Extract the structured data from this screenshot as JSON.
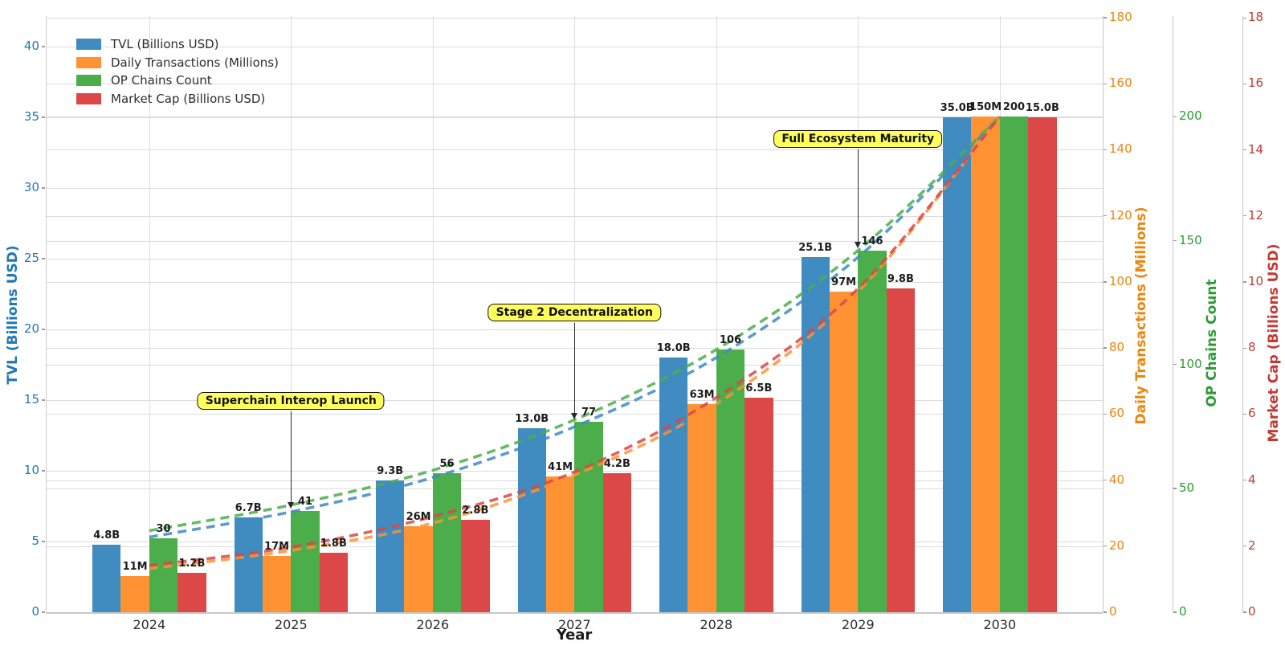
{
  "chart_data": {
    "type": "bar",
    "xlabel": "Year",
    "categories": [
      "2024",
      "2025",
      "2026",
      "2027",
      "2028",
      "2029",
      "2030"
    ],
    "series": [
      {
        "name": "TVL (Billions USD)",
        "values": [
          4.8,
          6.7,
          9.3,
          13.0,
          18.0,
          25.1,
          35.0
        ],
        "bar_labels": [
          "4.8B",
          "6.7B",
          "9.3B",
          "13.0B",
          "18.0B",
          "25.1B",
          "35.0B"
        ],
        "bar_color": "#408bbf",
        "text_color": "#1f77b4",
        "axis": {
          "side": "left",
          "title": "TVL (Billions USD)",
          "ticks": [
            0,
            5,
            10,
            15,
            20,
            25,
            30,
            35,
            40
          ]
        }
      },
      {
        "name": "Daily Transactions (Millions)",
        "values": [
          11,
          17,
          26,
          41,
          63,
          97,
          150
        ],
        "bar_labels": [
          "11M",
          "17M",
          "26M",
          "41M",
          "63M",
          "97M",
          "150M"
        ],
        "bar_color": "#ff9232",
        "text_color": "#ec850e",
        "axis": {
          "side": "right",
          "title": "Daily Transactions (Millions)",
          "ticks": [
            0,
            20,
            40,
            60,
            80,
            100,
            120,
            140,
            160,
            180
          ]
        }
      },
      {
        "name": "OP Chains Count",
        "values": [
          30,
          41,
          56,
          77,
          106,
          146,
          200
        ],
        "bar_labels": [
          "30",
          "41",
          "56",
          "77",
          "106",
          "146",
          "200"
        ],
        "bar_color": "#4bae4b",
        "text_color": "#2e9b34",
        "axis": {
          "side": "right",
          "title": "OP Chains Count",
          "ticks": [
            0,
            50,
            100,
            150,
            200
          ]
        }
      },
      {
        "name": "Market Cap (Billions USD)",
        "values": [
          1.2,
          1.8,
          2.8,
          4.2,
          6.5,
          9.8,
          15.0
        ],
        "bar_labels": [
          "1.2B",
          "1.8B",
          "2.8B",
          "4.2B",
          "6.5B",
          "9.8B",
          "15.0B"
        ],
        "bar_color": "#dc4748",
        "text_color": "#c33a34",
        "axis": {
          "side": "right",
          "title": "Market Cap (Billions USD)",
          "ticks": [
            0,
            2,
            4,
            6,
            8,
            10,
            12,
            14,
            16,
            18
          ]
        }
      }
    ],
    "legend": {
      "position": "top-left",
      "entries": [
        "TVL (Billions USD)",
        "Daily Transactions (Millions)",
        "OP Chains Count",
        "Market Cap (Billions USD)"
      ]
    },
    "annotations": [
      {
        "text": "Superchain Interop Launch",
        "target_category": "2025",
        "target_series": "OP Chains Count",
        "target_value": 41
      },
      {
        "text": "Stage 2 Decentralization",
        "target_category": "2027",
        "target_series": "OP Chains Count",
        "target_value": 77
      },
      {
        "text": "Full Ecosystem Maturity",
        "target_category": "2029",
        "target_series": "OP Chains Count",
        "target_value": 146
      }
    ],
    "annotation_style": {
      "background": "#ffff5e",
      "border": "#111111"
    },
    "grid": true,
    "trend_lines": "dashed exponential growth curves per series",
    "background": "#ffffff"
  }
}
